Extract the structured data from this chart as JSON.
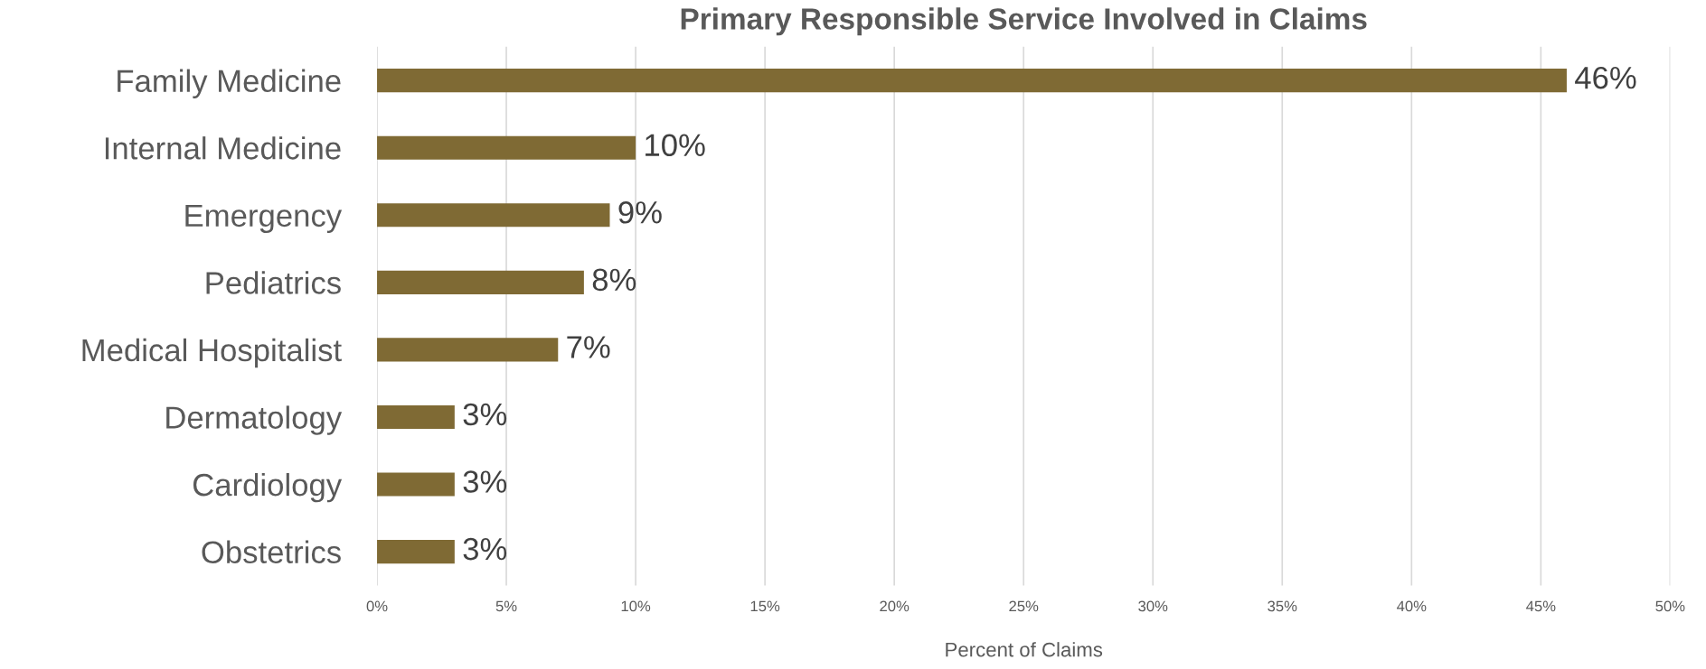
{
  "chart_data": {
    "type": "bar",
    "orientation": "horizontal",
    "title": "Primary Responsible Service Involved in Claims",
    "xlabel": "Percent of Claims",
    "categories": [
      "Family Medicine",
      "Internal Medicine",
      "Emergency",
      "Pediatrics",
      "Medical Hospitalist",
      "Dermatology",
      "Cardiology",
      "Obstetrics"
    ],
    "values": [
      46,
      10,
      9,
      8,
      7,
      3,
      3,
      3
    ],
    "value_labels": [
      "46%",
      "10%",
      "9%",
      "8%",
      "7%",
      "3%",
      "3%",
      "3%"
    ],
    "color": "#7f6a34",
    "xlim": [
      0,
      50
    ],
    "xticks": [
      {
        "value": 0,
        "label": "0%"
      },
      {
        "value": 5,
        "label": "5%"
      },
      {
        "value": 10,
        "label": "10%"
      },
      {
        "value": 15,
        "label": "15%"
      },
      {
        "value": 20,
        "label": "20%"
      },
      {
        "value": 25,
        "label": "25%"
      },
      {
        "value": 30,
        "label": "30%"
      },
      {
        "value": 35,
        "label": "35%"
      },
      {
        "value": 40,
        "label": "40%"
      },
      {
        "value": 45,
        "label": "45%"
      },
      {
        "value": 50,
        "label": "50%"
      }
    ],
    "grid": "x"
  }
}
